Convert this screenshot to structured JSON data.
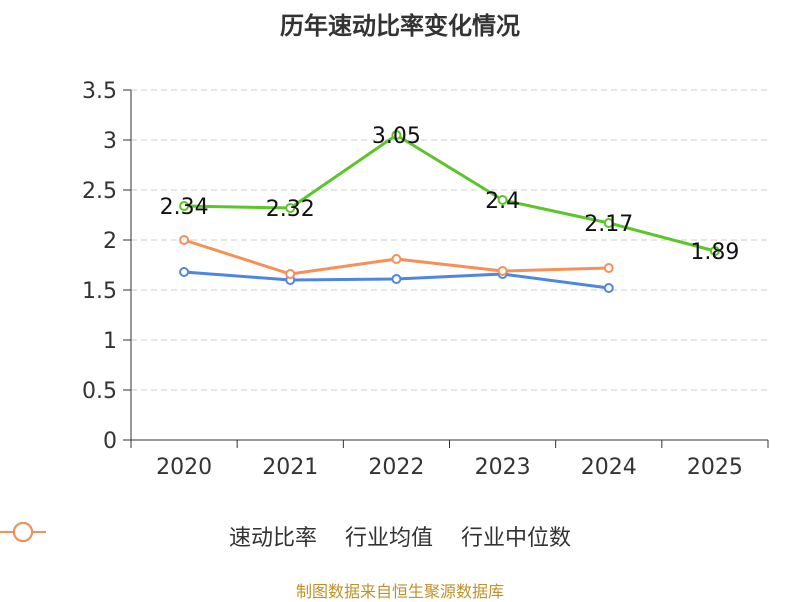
{
  "chart_data": {
    "type": "line",
    "title": "历年速动比率变化情况",
    "categories": [
      "2020",
      "2021",
      "2022",
      "2023",
      "2024",
      "2025"
    ],
    "y_ticks": [
      "0",
      "0.5",
      "1",
      "1.5",
      "2",
      "2.5",
      "3",
      "3.5"
    ],
    "ylim": [
      0,
      3.5
    ],
    "grid": true,
    "legend_position": "bottom",
    "series": [
      {
        "name": "速动比率",
        "color": "#5cc528",
        "values": [
          2.34,
          2.32,
          3.05,
          2.4,
          2.17,
          1.89
        ],
        "labels": [
          "2.34",
          "2.32",
          "3.05",
          "2.4",
          "2.17",
          "1.89"
        ],
        "show_labels": true
      },
      {
        "name": "行业均值",
        "color": "#4f86e0",
        "values": [
          1.68,
          1.6,
          1.61,
          1.66,
          1.52,
          null
        ],
        "show_labels": false
      },
      {
        "name": "行业中位数",
        "color": "#f78f57",
        "values": [
          2.0,
          1.66,
          1.81,
          1.69,
          1.72,
          null
        ],
        "show_labels": false
      }
    ]
  },
  "legend": {
    "items": [
      {
        "label": "速动比率"
      },
      {
        "label": "行业均值"
      },
      {
        "label": "行业中位数"
      }
    ]
  },
  "source": "制图数据来自恒生聚源数据库"
}
